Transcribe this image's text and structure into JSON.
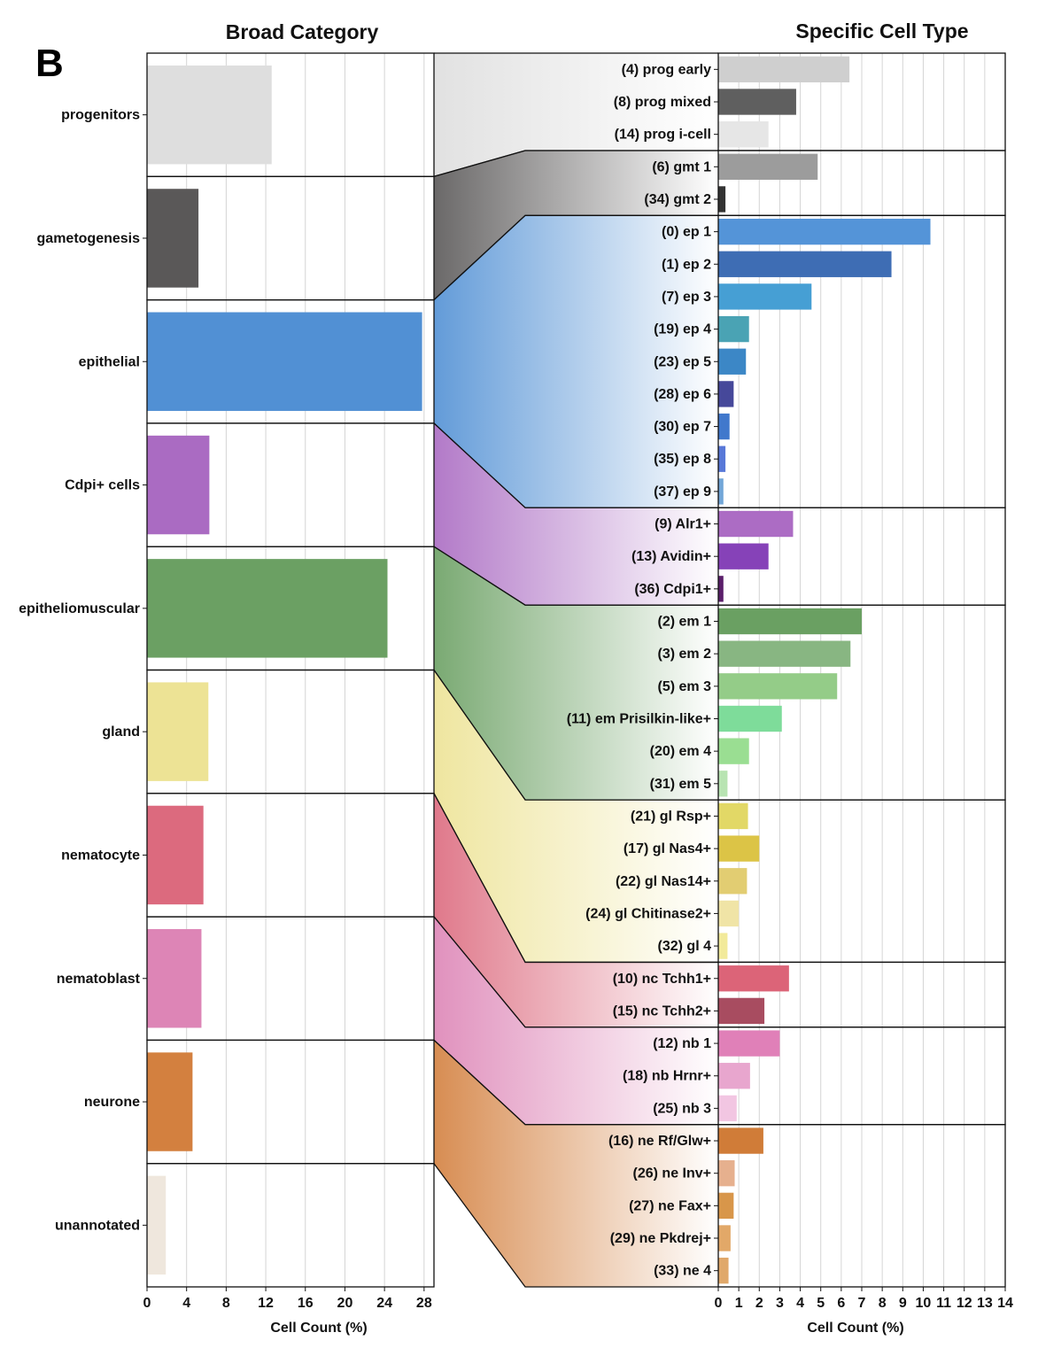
{
  "panel_letter": "B",
  "chart_data": [
    {
      "type": "bar",
      "orientation": "horizontal",
      "title": "Broad Category",
      "xlabel": "Cell Count (%)",
      "xlim": [
        0,
        29
      ],
      "xticks": [
        0,
        4,
        8,
        12,
        16,
        20,
        24,
        28
      ],
      "grid": true,
      "categories": [
        {
          "name": "progenitors",
          "value": 12.6,
          "color": "#dedede"
        },
        {
          "name": "gametogenesis",
          "value": 5.2,
          "color": "#5a5858"
        },
        {
          "name": "epithelial",
          "value": 27.8,
          "color": "#5190d4"
        },
        {
          "name": "Cdpi+ cells",
          "value": 6.3,
          "color": "#aa6bc2"
        },
        {
          "name": "epitheliomuscular",
          "value": 24.3,
          "color": "#6ba063"
        },
        {
          "name": "gland",
          "value": 6.2,
          "color": "#ede395"
        },
        {
          "name": "nematocyte",
          "value": 5.7,
          "color": "#dc6a7e"
        },
        {
          "name": "nematoblast",
          "value": 5.5,
          "color": "#dd85b6"
        },
        {
          "name": "neurone",
          "value": 4.6,
          "color": "#d3803f"
        },
        {
          "name": "unannotated",
          "value": 1.9,
          "color": "#efe7dd"
        }
      ]
    },
    {
      "type": "bar",
      "orientation": "horizontal",
      "title": "Specific Cell Type",
      "xlabel": "Cell Count (%)",
      "xlim": [
        0,
        14
      ],
      "xticks": [
        0,
        1,
        2,
        3,
        4,
        5,
        6,
        7,
        8,
        9,
        10,
        11,
        12,
        13,
        14
      ],
      "grid": true,
      "groups": [
        {
          "category": "progenitors",
          "items": [
            {
              "label": "(4) prog early",
              "value": 6.4,
              "color": "#cfcfcf"
            },
            {
              "label": "(8) prog mixed",
              "value": 3.8,
              "color": "#5f5f5f"
            },
            {
              "label": "(14) prog i-cell",
              "value": 2.45,
              "color": "#e6e6e6"
            }
          ]
        },
        {
          "category": "gametogenesis",
          "items": [
            {
              "label": "(6) gmt 1",
              "value": 4.85,
              "color": "#9c9c9c"
            },
            {
              "label": "(34) gmt 2",
              "value": 0.35,
              "color": "#333333"
            }
          ]
        },
        {
          "category": "epithelial",
          "items": [
            {
              "label": "(0) ep 1",
              "value": 10.35,
              "color": "#5494d8"
            },
            {
              "label": "(1) ep 2",
              "value": 8.45,
              "color": "#3e6db4"
            },
            {
              "label": "(7) ep 3",
              "value": 4.55,
              "color": "#469fd4"
            },
            {
              "label": "(19) ep 4",
              "value": 1.5,
              "color": "#4aa3b4"
            },
            {
              "label": "(23) ep 5",
              "value": 1.35,
              "color": "#3c87c6"
            },
            {
              "label": "(28) ep 6",
              "value": 0.75,
              "color": "#46489a"
            },
            {
              "label": "(30) ep 7",
              "value": 0.55,
              "color": "#4178cc"
            },
            {
              "label": "(35) ep 8",
              "value": 0.35,
              "color": "#5878d8"
            },
            {
              "label": "(37) ep 9",
              "value": 0.25,
              "color": "#72a6d8"
            }
          ]
        },
        {
          "category": "Cdpi+ cells",
          "items": [
            {
              "label": "(9) Alr1+",
              "value": 3.65,
              "color": "#ac6cc4"
            },
            {
              "label": "(13) Avidin+",
              "value": 2.45,
              "color": "#8642b8"
            },
            {
              "label": "(36) Cdpi1+",
              "value": 0.25,
              "color": "#5a1e6a"
            }
          ]
        },
        {
          "category": "epitheliomuscular",
          "items": [
            {
              "label": "(2) em 1",
              "value": 7.0,
              "color": "#6aa062"
            },
            {
              "label": "(3) em 2",
              "value": 6.45,
              "color": "#88b682"
            },
            {
              "label": "(5) em 3",
              "value": 5.8,
              "color": "#94cc88"
            },
            {
              "label": "(11) em Prisilkin-like+",
              "value": 3.1,
              "color": "#7edc9a"
            },
            {
              "label": "(20) em 4",
              "value": 1.5,
              "color": "#9ade92"
            },
            {
              "label": "(31) em 5",
              "value": 0.45,
              "color": "#b8e4b2"
            }
          ]
        },
        {
          "category": "gland",
          "items": [
            {
              "label": "(21) gl Rsp+",
              "value": 1.45,
              "color": "#e2d866"
            },
            {
              "label": "(17) gl Nas4+",
              "value": 2.0,
              "color": "#dcc446"
            },
            {
              "label": "(22) gl Nas14+",
              "value": 1.4,
              "color": "#e2cd72"
            },
            {
              "label": "(24) gl Chitinase2+",
              "value": 1.0,
              "color": "#f0e4a6"
            },
            {
              "label": "(32) gl 4",
              "value": 0.45,
              "color": "#f2ea9a"
            }
          ]
        },
        {
          "category": "nematocyte",
          "items": [
            {
              "label": "(10) nc Tchh1+",
              "value": 3.45,
              "color": "#dc6478"
            },
            {
              "label": "(15) nc Tchh2+",
              "value": 2.25,
              "color": "#a84c60"
            }
          ]
        },
        {
          "category": "nematoblast",
          "items": [
            {
              "label": "(12) nb 1",
              "value": 3.0,
              "color": "#e080b8"
            },
            {
              "label": "(18) nb Hrnr+",
              "value": 1.55,
              "color": "#e8a6ce"
            },
            {
              "label": "(25) nb 3",
              "value": 0.9,
              "color": "#f2c6e2"
            }
          ]
        },
        {
          "category": "neurone",
          "items": [
            {
              "label": "(16) ne Rf/Glw+",
              "value": 2.2,
              "color": "#d07c38"
            },
            {
              "label": "(26) ne Inv+",
              "value": 0.8,
              "color": "#e6b08e"
            },
            {
              "label": "(27) ne Fax+",
              "value": 0.75,
              "color": "#d8964a"
            },
            {
              "label": "(29) ne Pkdrej+",
              "value": 0.6,
              "color": "#e2a868"
            },
            {
              "label": "(33) ne 4",
              "value": 0.5,
              "color": "#e0a86a"
            }
          ]
        }
      ]
    }
  ]
}
